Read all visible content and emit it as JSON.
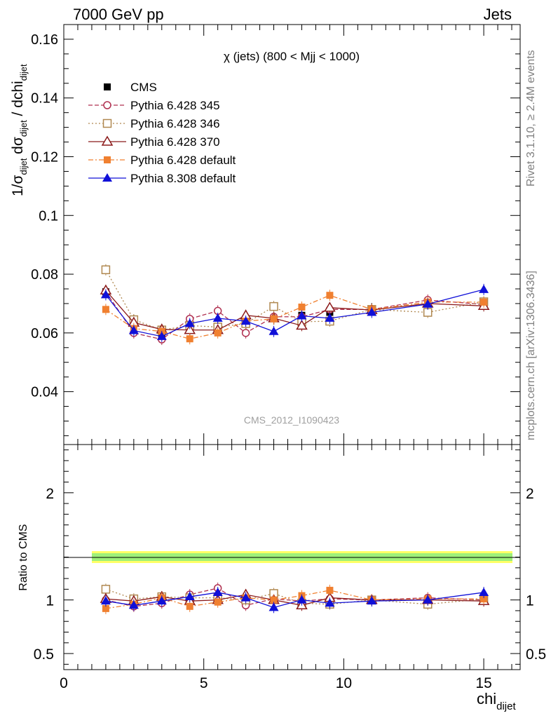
{
  "header": {
    "left": "7000 GeV pp",
    "right": "Jets"
  },
  "side": {
    "top": "Rivet 3.1.10, ≥ 2.4M events",
    "bottom": "mcplots.cern.ch [arXiv:1306.3436]"
  },
  "watermark": "CMS_2012_I1090423",
  "chart_data": [
    {
      "type": "line",
      "title": "χ (jets) (800 < Mjj < 1000)",
      "ylabel": "1/σdijet dσdijet / dchidijet",
      "xlim": [
        0,
        16.3
      ],
      "ylim": [
        0.022,
        0.165
      ],
      "yticks": [
        "0.04",
        "0.06",
        "0.08",
        "0.1",
        "0.12",
        "0.14",
        "0.16"
      ],
      "x": [
        1.5,
        2.5,
        3.5,
        4.5,
        5.5,
        6.5,
        7.5,
        8.5,
        9.5,
        11,
        13,
        15
      ],
      "data": {
        "name": "CMS",
        "values": [
          0.074,
          0.064,
          0.0595,
          0.0615,
          0.061,
          0.063,
          0.065,
          0.066,
          0.067,
          0.068,
          0.07,
          0.07
        ]
      },
      "series": [
        {
          "name": "Pythia 6.428 345",
          "color": "#b03050",
          "values": [
            0.074,
            0.06,
            0.0578,
            0.0648,
            0.0675,
            0.06,
            0.0655,
            0.0655,
            0.068,
            0.068,
            0.0712,
            0.0697
          ]
        },
        {
          "name": "Pythia 6.428 346",
          "color": "#b08850",
          "values": [
            0.0815,
            0.0645,
            0.061,
            0.0625,
            0.062,
            0.0632,
            0.069,
            0.0638,
            0.064,
            0.068,
            0.067,
            0.0706
          ]
        },
        {
          "name": "Pythia 6.428 370",
          "color": "#8b1a1a",
          "values": [
            0.0745,
            0.0635,
            0.0612,
            0.061,
            0.061,
            0.066,
            0.065,
            0.0625,
            0.0686,
            0.0678,
            0.07,
            0.0692
          ]
        },
        {
          "name": "Pythia 6.428 default",
          "color": "#f08030",
          "values": [
            0.068,
            0.0615,
            0.0605,
            0.058,
            0.06,
            0.064,
            0.0648,
            0.0688,
            0.0728,
            0.068,
            0.0705,
            0.0705
          ]
        },
        {
          "name": "Pythia 8.308 default",
          "color": "#1010d8",
          "values": [
            0.073,
            0.0608,
            0.0588,
            0.0632,
            0.065,
            0.064,
            0.0605,
            0.0658,
            0.065,
            0.067,
            0.0698,
            0.0748
          ]
        }
      ]
    },
    {
      "type": "line",
      "ylabel": "Ratio to CMS",
      "xlabel": "chidijet",
      "xlim": [
        0,
        16.3
      ],
      "xticks": [
        "0",
        "5",
        "10",
        "15"
      ],
      "ylim": [
        0.35,
        2.45
      ],
      "yticks": [
        "0.5",
        "1",
        "2"
      ],
      "x": [
        1.5,
        2.5,
        3.5,
        4.5,
        5.5,
        6.5,
        7.5,
        8.5,
        9.5,
        11,
        13,
        15
      ],
      "series": [
        {
          "name": "Pythia 6.428 345",
          "values": [
            1.0,
            0.94,
            0.97,
            1.05,
            1.11,
            0.95,
            1.01,
            0.99,
            1.01,
            1.0,
            1.02,
            1.0
          ]
        },
        {
          "name": "Pythia 6.428 346",
          "values": [
            1.1,
            1.01,
            1.03,
            1.02,
            1.02,
            1.0,
            1.06,
            0.97,
            0.96,
            1.0,
            0.96,
            1.01
          ]
        },
        {
          "name": "Pythia 6.428 370",
          "values": [
            1.01,
            0.99,
            1.03,
            0.99,
            1.0,
            1.05,
            1.0,
            0.95,
            1.02,
            1.0,
            1.0,
            0.99
          ]
        },
        {
          "name": "Pythia 6.428 default",
          "values": [
            0.92,
            0.96,
            1.02,
            0.94,
            0.98,
            1.02,
            1.0,
            1.04,
            1.09,
            1.0,
            1.01,
            1.01
          ]
        },
        {
          "name": "Pythia 8.308 default",
          "values": [
            0.99,
            0.95,
            0.99,
            1.03,
            1.07,
            1.02,
            0.93,
            1.0,
            0.97,
            0.99,
            1.0,
            1.07
          ]
        }
      ]
    }
  ]
}
